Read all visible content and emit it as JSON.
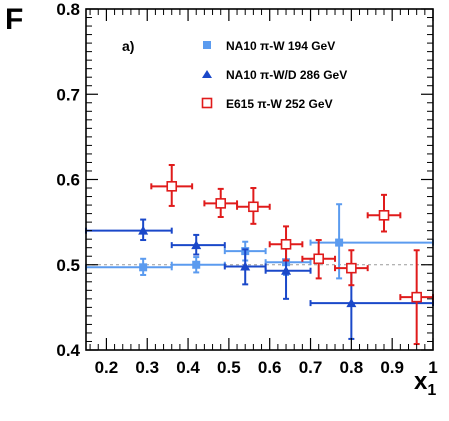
{
  "chart_data": {
    "type": "scatter",
    "xlabel": "x",
    "xlabel_sub": "1",
    "ylabel": "F",
    "panel_label": "a)",
    "xlim": [
      0.15,
      1.0
    ],
    "ylim": [
      0.4,
      0.8
    ],
    "x_ticks": [
      "0.2",
      "0.3",
      "0.4",
      "0.5",
      "0.6",
      "0.7",
      "0.8",
      "0.9",
      "1"
    ],
    "y_ticks": [
      "0.4",
      "0.5",
      "0.6",
      "0.7",
      "0.8"
    ],
    "reference_line": 0.5,
    "legend_position": "top-right",
    "series": [
      {
        "name": "NA10  π-W  194 GeV",
        "color": "#5b9bef",
        "marker": "square-filled",
        "points": [
          {
            "x": 0.29,
            "y": 0.497,
            "xlo": 0.15,
            "xhi": 0.36,
            "ylo": 0.488,
            "yhi": 0.507
          },
          {
            "x": 0.42,
            "y": 0.5,
            "xlo": 0.36,
            "xhi": 0.49,
            "ylo": 0.491,
            "yhi": 0.509
          },
          {
            "x": 0.54,
            "y": 0.516,
            "xlo": 0.49,
            "xhi": 0.59,
            "ylo": 0.505,
            "yhi": 0.527
          },
          {
            "x": 0.64,
            "y": 0.503,
            "xlo": 0.59,
            "xhi": 0.7,
            "ylo": 0.488,
            "yhi": 0.519
          },
          {
            "x": 0.77,
            "y": 0.526,
            "xlo": 0.7,
            "xhi": 1.0,
            "ylo": 0.484,
            "yhi": 0.571
          }
        ]
      },
      {
        "name": "NA10  π-W/D  286 GeV",
        "color": "#1a48c9",
        "marker": "triangle-filled",
        "points": [
          {
            "x": 0.29,
            "y": 0.54,
            "xlo": 0.15,
            "xhi": 0.36,
            "ylo": 0.529,
            "yhi": 0.553
          },
          {
            "x": 0.42,
            "y": 0.523,
            "xlo": 0.36,
            "xhi": 0.49,
            "ylo": 0.512,
            "yhi": 0.535
          },
          {
            "x": 0.54,
            "y": 0.498,
            "xlo": 0.49,
            "xhi": 0.59,
            "ylo": 0.477,
            "yhi": 0.518
          },
          {
            "x": 0.64,
            "y": 0.493,
            "xlo": 0.59,
            "xhi": 0.7,
            "ylo": 0.46,
            "yhi": 0.525
          },
          {
            "x": 0.8,
            "y": 0.455,
            "xlo": 0.7,
            "xhi": 1.0,
            "ylo": 0.413,
            "yhi": 0.497
          }
        ]
      },
      {
        "name": "E615  π-W  252 GeV",
        "color": "#e01b1b",
        "marker": "square-open",
        "points": [
          {
            "x": 0.36,
            "y": 0.592,
            "xlo": 0.31,
            "xhi": 0.41,
            "ylo": 0.569,
            "yhi": 0.617
          },
          {
            "x": 0.48,
            "y": 0.572,
            "xlo": 0.44,
            "xhi": 0.52,
            "ylo": 0.556,
            "yhi": 0.589
          },
          {
            "x": 0.56,
            "y": 0.568,
            "xlo": 0.52,
            "xhi": 0.6,
            "ylo": 0.548,
            "yhi": 0.59
          },
          {
            "x": 0.64,
            "y": 0.524,
            "xlo": 0.6,
            "xhi": 0.68,
            "ylo": 0.505,
            "yhi": 0.545
          },
          {
            "x": 0.72,
            "y": 0.507,
            "xlo": 0.68,
            "xhi": 0.76,
            "ylo": 0.484,
            "yhi": 0.529
          },
          {
            "x": 0.8,
            "y": 0.496,
            "xlo": 0.76,
            "xhi": 0.84,
            "ylo": 0.476,
            "yhi": 0.517
          },
          {
            "x": 0.88,
            "y": 0.558,
            "xlo": 0.84,
            "xhi": 0.92,
            "ylo": 0.539,
            "yhi": 0.582
          },
          {
            "x": 0.96,
            "y": 0.462,
            "xlo": 0.92,
            "xhi": 1.0,
            "ylo": 0.407,
            "yhi": 0.517
          }
        ]
      }
    ]
  }
}
